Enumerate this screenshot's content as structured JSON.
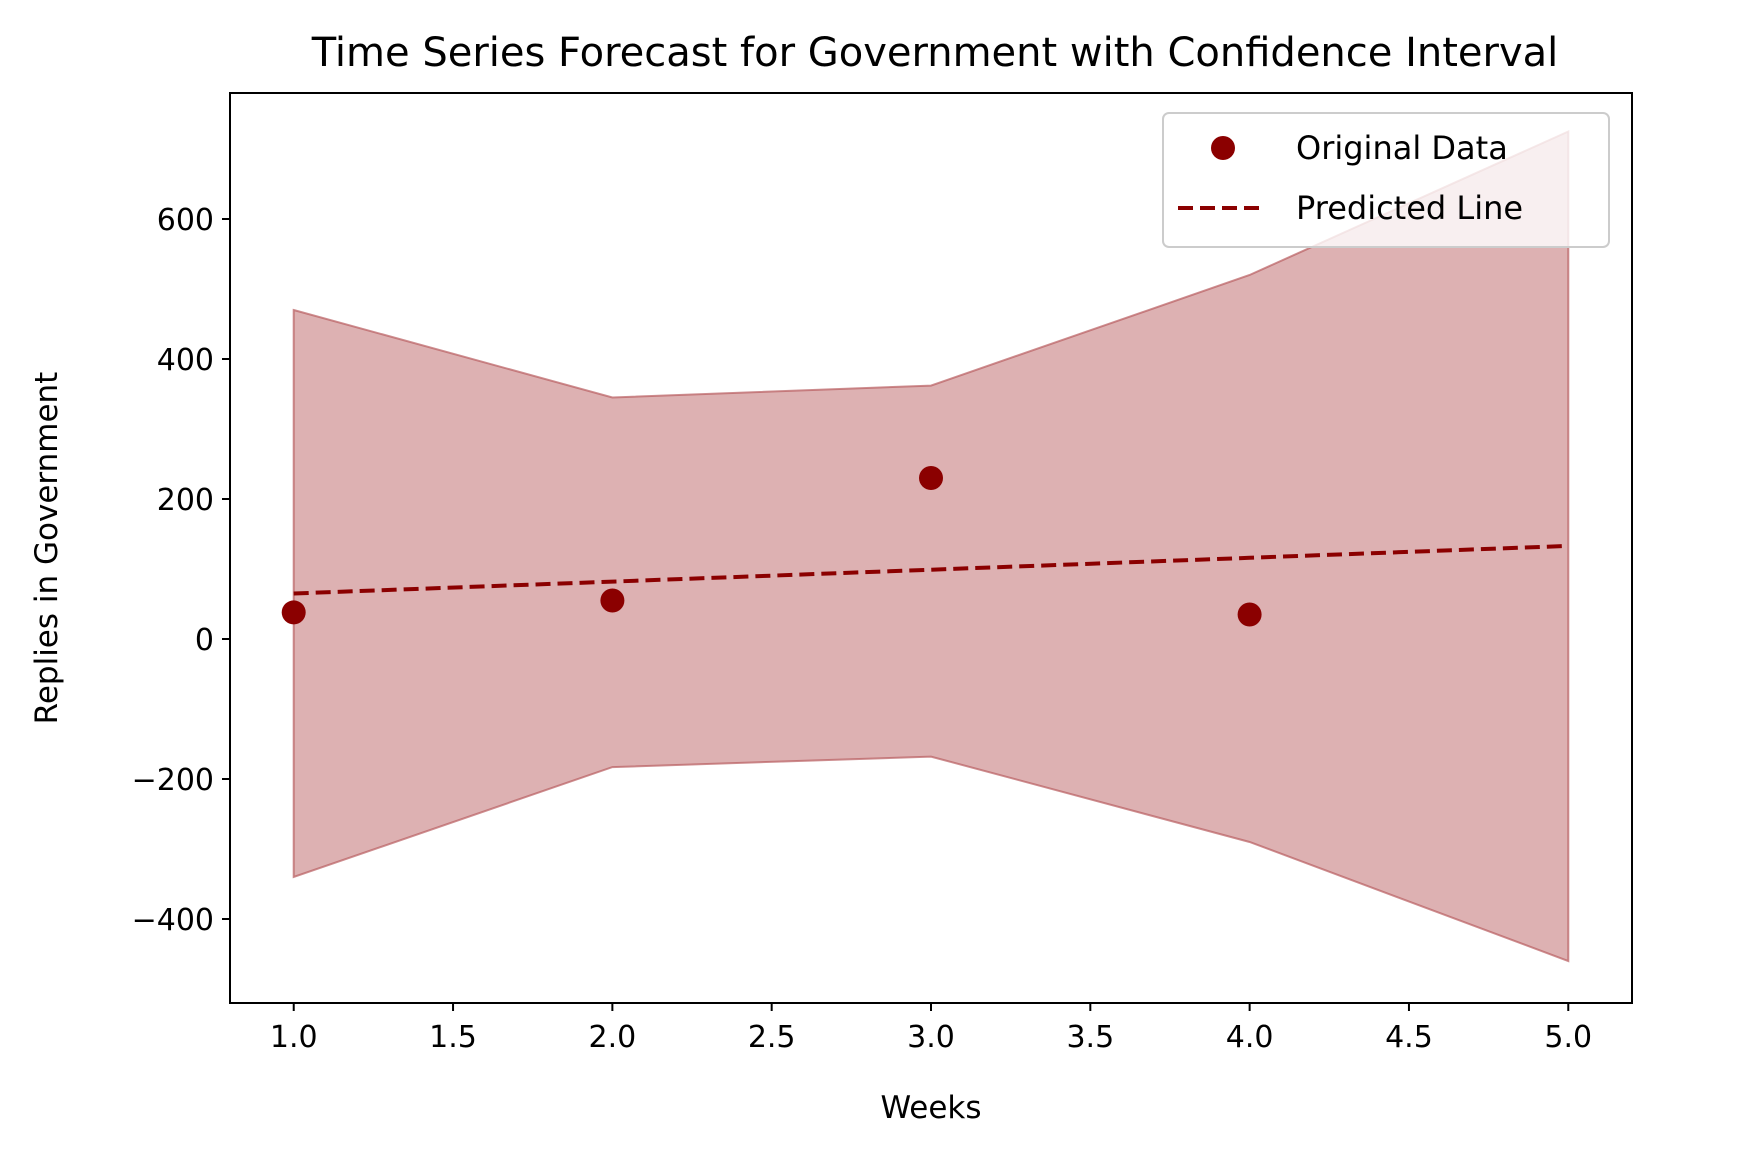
{
  "chart_data": {
    "type": "line",
    "title": "Time Series Forecast for Government with Confidence Interval",
    "xlabel": "Weeks",
    "ylabel": "Replies in Government",
    "xlim": [
      0.8,
      5.2
    ],
    "ylim": [
      -520,
      780
    ],
    "x_ticks": [
      1.0,
      1.5,
      2.0,
      2.5,
      3.0,
      3.5,
      4.0,
      4.5,
      5.0
    ],
    "x_tick_labels": [
      "1.0",
      "1.5",
      "2.0",
      "2.5",
      "3.0",
      "3.5",
      "4.0",
      "4.5",
      "5.0"
    ],
    "y_ticks": [
      -400,
      -200,
      0,
      200,
      400,
      600
    ],
    "y_tick_labels": [
      "−400",
      "−200",
      "0",
      "200",
      "400",
      "600"
    ],
    "grid": false,
    "legend_position": "top-right",
    "series": [
      {
        "name": "Original Data",
        "kind": "scatter",
        "color": "#8b0000",
        "x": [
          1,
          2,
          3,
          4
        ],
        "y": [
          38,
          55,
          230,
          35
        ]
      },
      {
        "name": "Predicted Line",
        "kind": "dashed-line",
        "color": "#8b0000",
        "x": [
          1,
          2,
          3,
          4,
          5
        ],
        "y": [
          65,
          82,
          99,
          116,
          133
        ]
      }
    ],
    "confidence_interval": {
      "color": "#b85c5f",
      "x": [
        1,
        2,
        3,
        4,
        5
      ],
      "lower": [
        -340,
        -183,
        -168,
        -290,
        -460
      ],
      "upper": [
        470,
        345,
        362,
        520,
        725
      ]
    }
  }
}
